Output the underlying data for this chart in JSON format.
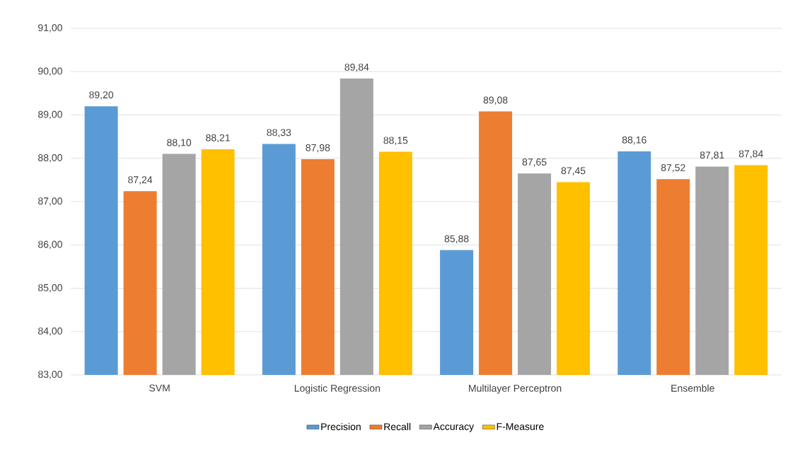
{
  "chart_data": {
    "type": "bar",
    "categories": [
      "SVM",
      "Logistic Regression",
      "Multilayer Perceptron",
      "Ensemble"
    ],
    "series": [
      {
        "name": "Precision",
        "color": "#5b9bd5",
        "values": [
          89.2,
          88.33,
          85.88,
          88.16
        ],
        "value_labels": [
          "89,20",
          "88,33",
          "85,88",
          "88,16"
        ]
      },
      {
        "name": "Recall",
        "color": "#ed7d31",
        "values": [
          87.24,
          87.98,
          89.08,
          87.52
        ],
        "value_labels": [
          "87,24",
          "87,98",
          "89,08",
          "87,52"
        ]
      },
      {
        "name": "Accuracy",
        "color": "#a5a5a5",
        "values": [
          88.1,
          89.84,
          87.65,
          87.81
        ],
        "value_labels": [
          "88,10",
          "89,84",
          "87,65",
          "87,81"
        ]
      },
      {
        "name": "F-Measure",
        "color": "#ffc000",
        "values": [
          88.21,
          88.15,
          87.45,
          87.84
        ],
        "value_labels": [
          "88,21",
          "88,15",
          "87,45",
          "87,84"
        ]
      }
    ],
    "ylim": [
      83,
      91
    ],
    "yticks": [
      {
        "value": 83,
        "label": "83,00"
      },
      {
        "value": 84,
        "label": "84,00"
      },
      {
        "value": 85,
        "label": "85,00"
      },
      {
        "value": 86,
        "label": "86,00"
      },
      {
        "value": 87,
        "label": "87,00"
      },
      {
        "value": 88,
        "label": "88,00"
      },
      {
        "value": 89,
        "label": "89,00"
      },
      {
        "value": 90,
        "label": "90,00"
      },
      {
        "value": 91,
        "label": "91,00"
      }
    ],
    "grid": "y",
    "legend": "bottom"
  }
}
